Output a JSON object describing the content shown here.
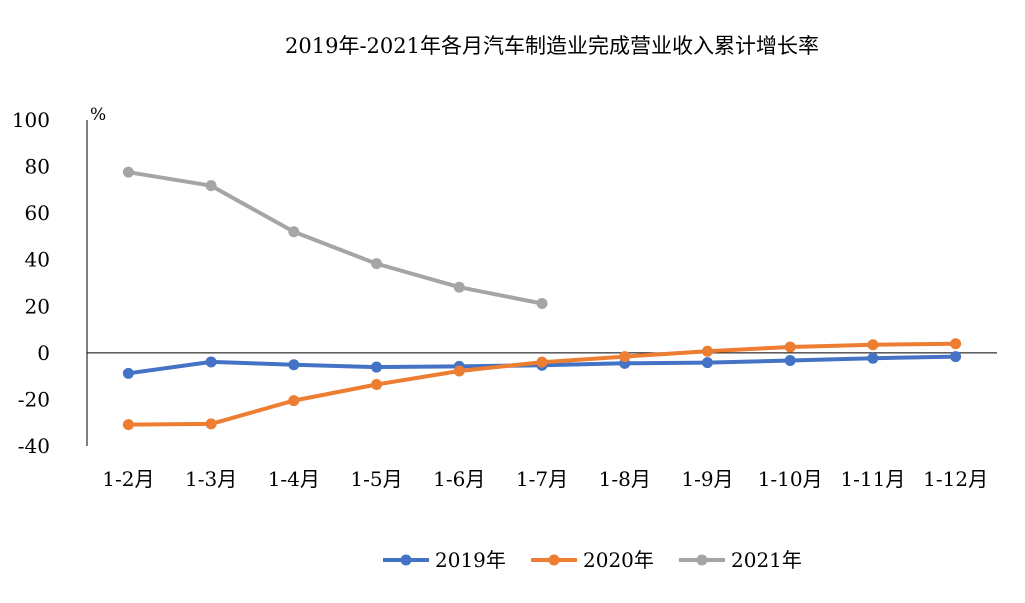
{
  "chart_data": {
    "type": "line",
    "title": "2019年-2021年各月汽车制造业完成营业收入累计增长率",
    "ylabel": "%",
    "xlabel": "",
    "categories": [
      "1-2月",
      "1-3月",
      "1-4月",
      "1-5月",
      "1-6月",
      "1-7月",
      "1-8月",
      "1-9月",
      "1-10月",
      "1-11月",
      "1-12月"
    ],
    "ylim": [
      -40,
      100
    ],
    "yticks": [
      "100",
      "80",
      "60",
      "40",
      "20",
      "0",
      "-20",
      "-40"
    ],
    "grid": false,
    "legend_position": "bottom",
    "series": [
      {
        "name": "2019年",
        "color": "#4472C4",
        "values": [
          -8.8,
          -3.9,
          -5.1,
          -6.1,
          -5.8,
          -5.3,
          -4.5,
          -4.2,
          -3.3,
          -2.3,
          -1.6
        ]
      },
      {
        "name": "2020年",
        "color": "#ED7D31",
        "values": [
          -30.8,
          -30.5,
          -20.5,
          -13.6,
          -7.8,
          -4.0,
          -1.6,
          0.7,
          2.5,
          3.5,
          3.9
        ]
      },
      {
        "name": "2021年",
        "color": "#A5A5A5",
        "values": [
          77.6,
          71.8,
          52.0,
          38.3,
          28.2,
          21.2,
          null,
          null,
          null,
          null,
          null
        ]
      }
    ]
  }
}
